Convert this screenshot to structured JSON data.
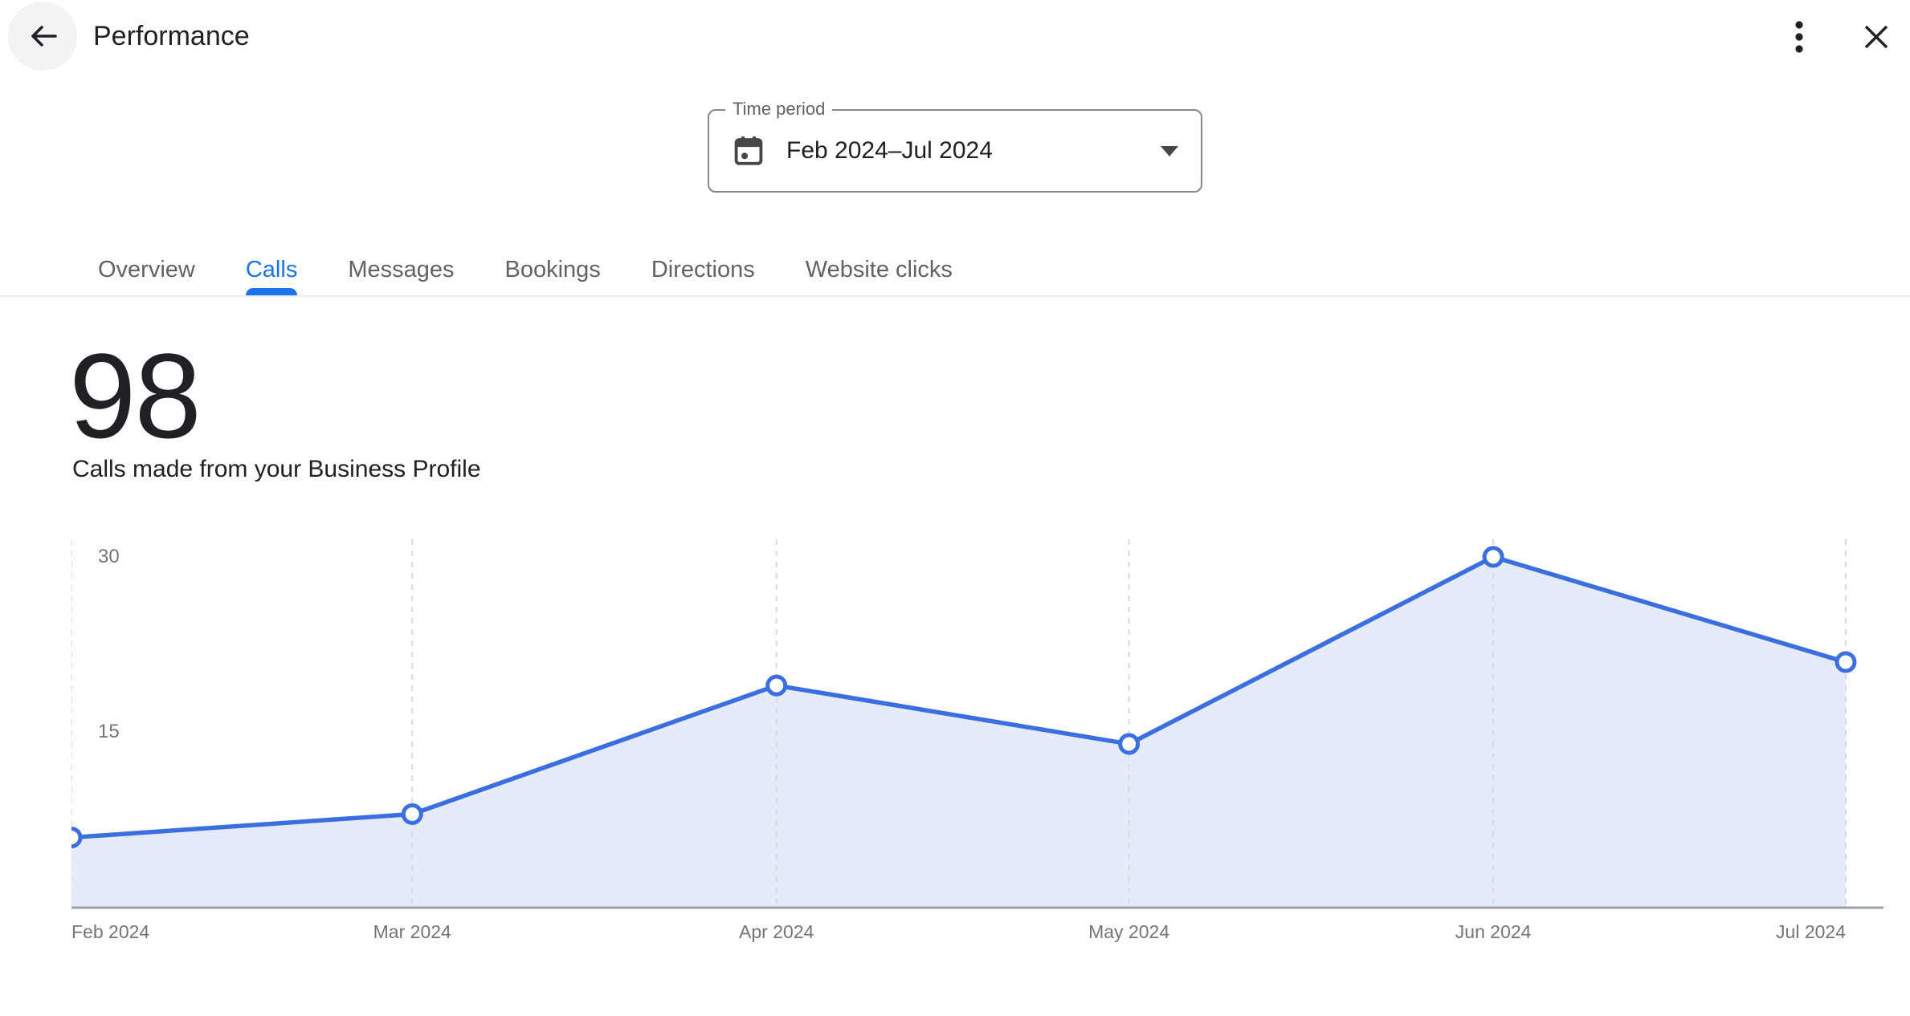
{
  "header": {
    "title": "Performance"
  },
  "time_period": {
    "label": "Time period",
    "value": "Feb 2024–Jul 2024"
  },
  "tabs": [
    {
      "label": "Overview",
      "active": false
    },
    {
      "label": "Calls",
      "active": true
    },
    {
      "label": "Messages",
      "active": false
    },
    {
      "label": "Bookings",
      "active": false
    },
    {
      "label": "Directions",
      "active": false
    },
    {
      "label": "Website clicks",
      "active": false
    }
  ],
  "metric": {
    "value": "98",
    "description": "Calls made from your Business Profile"
  },
  "chart_data": {
    "type": "area",
    "title": "Calls made from your Business Profile",
    "total": 98,
    "categories": [
      "Feb 2024",
      "Mar 2024",
      "Apr 2024",
      "May 2024",
      "Jun 2024",
      "Jul 2024"
    ],
    "values": [
      6,
      8,
      19,
      14,
      30,
      21
    ],
    "x_offsets_days": [
      0,
      29,
      60,
      90,
      121,
      151
    ],
    "y_ticks": [
      30,
      15
    ],
    "ylim": [
      0,
      31.5
    ],
    "grid": "vertical-dashed",
    "legend": "none",
    "colors": {
      "line": "#3b6fe0",
      "fill": "#e6ebfa",
      "grid": "#d6d9dd",
      "baseline": "#9aa0a6",
      "active_tab": "#1a73e8",
      "axis_text": "#757575"
    }
  }
}
